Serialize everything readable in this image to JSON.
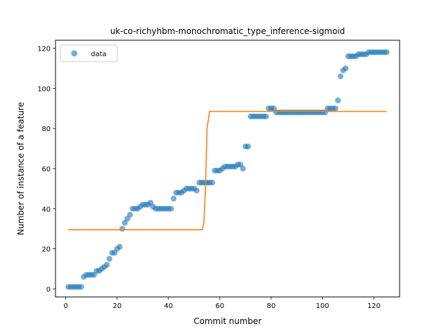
{
  "chart_data": {
    "type": "scatter",
    "title": "uk-co-richyhbm-monochromatic_type_inference-sigmoid",
    "xlabel": "Commit number",
    "ylabel": "Number of instance of a feature",
    "xlim": [
      -4,
      130
    ],
    "ylim": [
      -4,
      124
    ],
    "xticks": [
      0,
      20,
      40,
      60,
      80,
      100,
      120
    ],
    "yticks": [
      0,
      20,
      40,
      60,
      80,
      100,
      120
    ],
    "grid": false,
    "legend": {
      "position": "top-left",
      "entries": [
        {
          "label": "data"
        }
      ]
    },
    "colors": {
      "data": "#1f77b4",
      "fit": "#ff7f0e"
    },
    "series": [
      {
        "name": "data",
        "kind": "scatter",
        "x": [
          1,
          2,
          3,
          4,
          5,
          6,
          7,
          8,
          9,
          10,
          11,
          12,
          13,
          14,
          15,
          16,
          17,
          18,
          19,
          20,
          21,
          22,
          23,
          24,
          25,
          26,
          27,
          28,
          29,
          30,
          31,
          32,
          33,
          34,
          35,
          36,
          37,
          38,
          39,
          40,
          41,
          42,
          43,
          44,
          45,
          46,
          47,
          48,
          49,
          50,
          51,
          52,
          53,
          54,
          55,
          56,
          57,
          58,
          59,
          60,
          61,
          62,
          63,
          64,
          65,
          66,
          67,
          68,
          69,
          70,
          71,
          72,
          73,
          74,
          75,
          76,
          77,
          78,
          79,
          80,
          81,
          82,
          83,
          84,
          85,
          86,
          87,
          88,
          89,
          90,
          91,
          92,
          93,
          94,
          95,
          96,
          97,
          98,
          99,
          100,
          101,
          102,
          103,
          104,
          105,
          106,
          107,
          108,
          109,
          110,
          111,
          112,
          113,
          114,
          115,
          116,
          117,
          118,
          119,
          120,
          121,
          122,
          123,
          124,
          125
        ],
        "y": [
          1,
          1,
          1,
          1,
          1,
          1,
          6,
          7,
          7,
          7,
          7,
          9,
          9,
          10,
          11,
          12,
          15,
          18,
          18,
          20,
          21,
          30,
          33,
          35,
          37,
          40,
          40,
          40,
          41,
          42,
          42,
          42,
          43,
          41,
          40,
          40,
          40,
          40,
          40,
          40,
          40,
          45,
          48,
          48,
          48,
          49,
          50,
          50,
          50,
          50,
          49,
          53,
          53,
          53,
          53,
          53,
          53,
          59,
          59,
          59,
          60,
          61,
          61,
          61,
          61,
          61,
          62,
          62,
          60,
          71,
          71,
          86,
          86,
          86,
          86,
          86,
          86,
          86,
          90,
          90,
          90,
          88,
          88,
          88,
          88,
          88,
          88,
          88,
          88,
          88,
          88,
          88,
          88,
          88,
          88,
          88,
          88,
          88,
          88,
          88,
          88,
          90,
          90,
          90,
          90,
          94,
          106,
          109,
          110,
          116,
          116,
          116,
          116,
          117,
          117,
          117,
          117,
          118,
          118,
          118,
          118,
          118,
          118,
          118,
          118
        ]
      },
      {
        "name": "",
        "kind": "line",
        "x": [
          1,
          53.2,
          53.8,
          54.4,
          55,
          56,
          125
        ],
        "y": [
          29.5,
          29.5,
          33,
          50,
          80,
          88.5,
          88.5
        ]
      }
    ]
  }
}
